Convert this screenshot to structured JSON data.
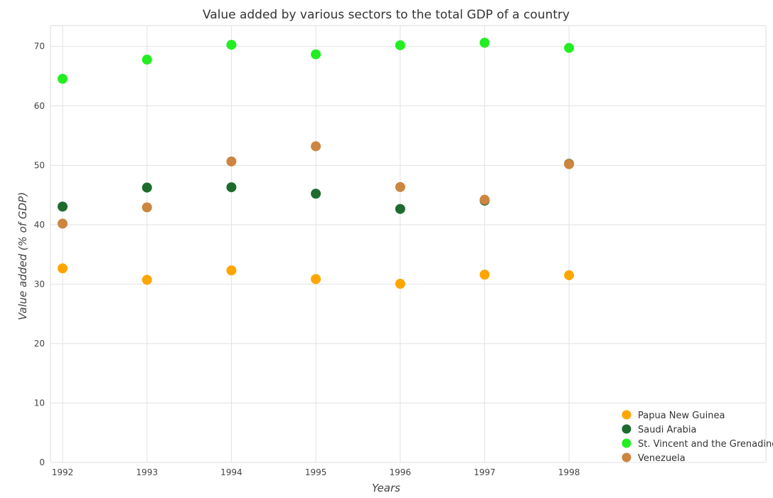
{
  "chart_data": {
    "type": "scatter",
    "title": "Value added by various sectors to the total GDP of a country",
    "xlabel": "Years",
    "ylabel": "Value added (% of GDP)",
    "categories": [
      "1992",
      "1993",
      "1994",
      "1995",
      "1996",
      "1997",
      "1998"
    ],
    "ylim": [
      0,
      73.5
    ],
    "yticks": [
      0,
      10,
      20,
      30,
      40,
      50,
      60,
      70
    ],
    "ytick_labels": [
      "0",
      "10",
      "20",
      "30",
      "40",
      "50",
      "60",
      "70"
    ],
    "grid": true,
    "legend_position": "bottom-right",
    "series": [
      {
        "name": "Papua New Guinea",
        "color": "#FFA500",
        "values": [
          32.65,
          30.73,
          32.3,
          30.85,
          30.06,
          31.6,
          31.5
        ]
      },
      {
        "name": "Saudi Arabia",
        "color": "#1E6B2E",
        "values": [
          43.05,
          46.25,
          46.3,
          45.22,
          42.65,
          44.05,
          50.25
        ]
      },
      {
        "name": "St. Vincent and the Grenadines",
        "color": "#22EE22",
        "values": [
          64.55,
          67.78,
          70.27,
          68.67,
          70.2,
          70.62,
          69.75
        ]
      },
      {
        "name": "Venezuela",
        "color": "#CD853F",
        "values": [
          40.18,
          42.92,
          50.64,
          53.2,
          46.34,
          44.2,
          50.18
        ]
      }
    ]
  }
}
